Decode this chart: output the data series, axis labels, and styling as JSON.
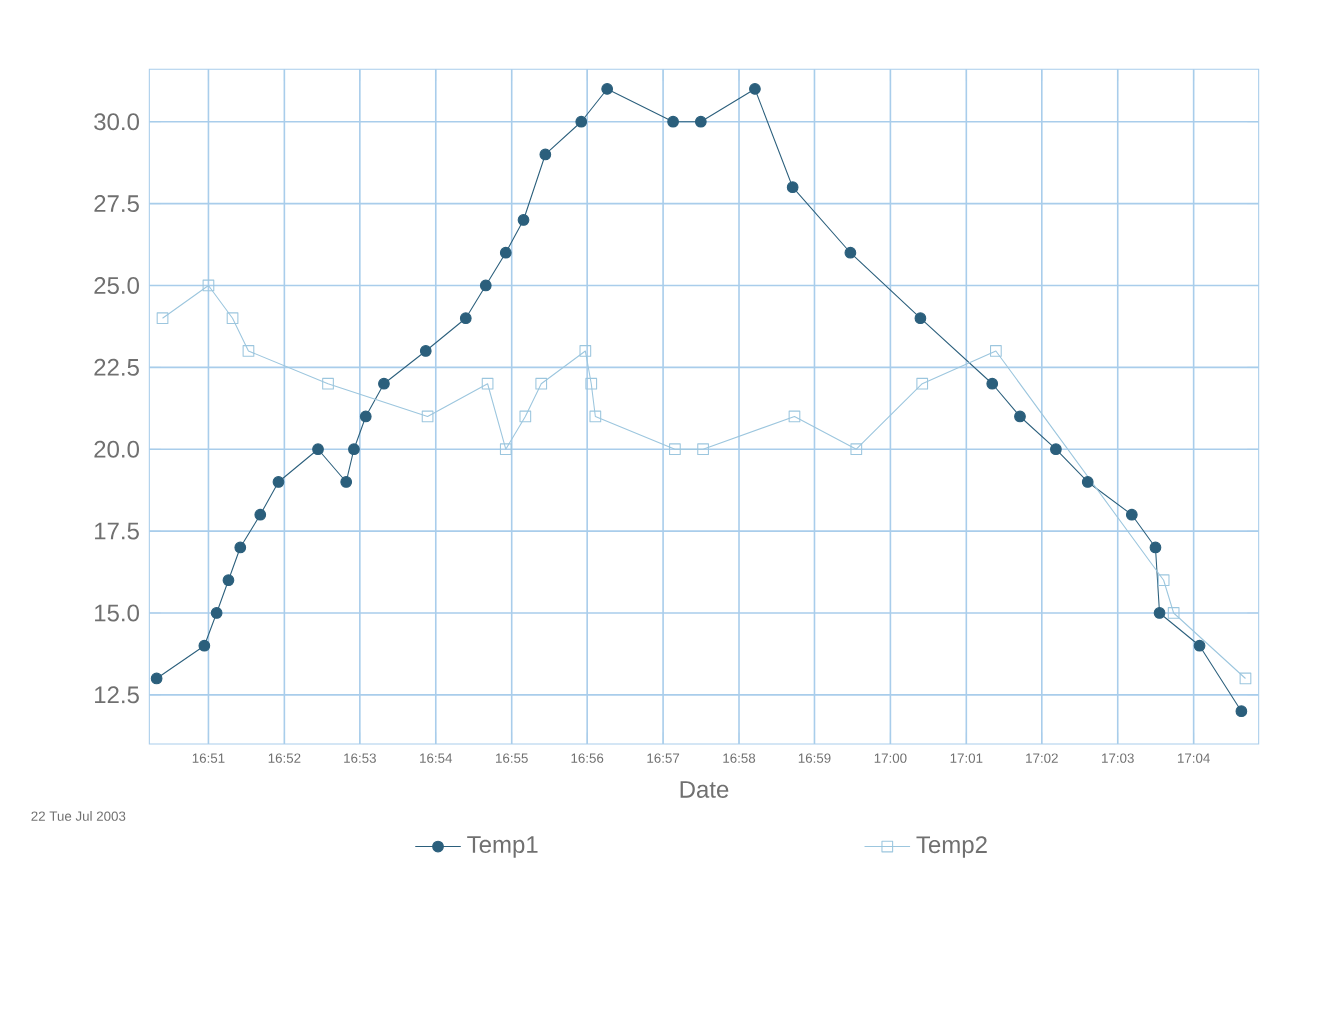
{
  "chart_data": {
    "type": "line",
    "xlabel": "Date",
    "annotations": [
      "22 Tue Jul 2003"
    ],
    "xlim": [
      16.837,
      17.081
    ],
    "ylim": [
      11.0,
      31.6
    ],
    "xticks": [
      {
        "value": 16.85,
        "label": "16:51"
      },
      {
        "value": 16.8667,
        "label": "16:52"
      },
      {
        "value": 16.8833,
        "label": "16:53"
      },
      {
        "value": 16.9,
        "label": "16:54"
      },
      {
        "value": 16.9167,
        "label": "16:55"
      },
      {
        "value": 16.9333,
        "label": "16:56"
      },
      {
        "value": 16.95,
        "label": "16:57"
      },
      {
        "value": 16.9667,
        "label": "16:58"
      },
      {
        "value": 16.9833,
        "label": "16:59"
      },
      {
        "value": 17.0,
        "label": "17:00"
      },
      {
        "value": 17.0167,
        "label": "17:01"
      },
      {
        "value": 17.0333,
        "label": "17:02"
      },
      {
        "value": 17.05,
        "label": "17:03"
      },
      {
        "value": 17.0667,
        "label": "17:04"
      }
    ],
    "yticks": [
      {
        "value": 12.5,
        "label": "12.5"
      },
      {
        "value": 15,
        "label": "15.0"
      },
      {
        "value": 17.5,
        "label": "17.5"
      },
      {
        "value": 20,
        "label": "20.0"
      },
      {
        "value": 22.5,
        "label": "22.5"
      },
      {
        "value": 25,
        "label": "25.0"
      },
      {
        "value": 27.5,
        "label": "27.5"
      },
      {
        "value": 30,
        "label": "30.0"
      }
    ],
    "grid": true,
    "legend": "bottom",
    "line_style": "solid",
    "series": [
      {
        "name": "Temp1",
        "color": "#2b5f7c",
        "marker": "circle",
        "x": [
          16.8386,
          16.8491,
          16.8518,
          16.8544,
          16.857,
          16.8614,
          16.8654,
          16.8741,
          16.8803,
          16.882,
          16.8846,
          16.8886,
          16.8978,
          16.9066,
          16.911,
          16.9154,
          16.9193,
          16.9241,
          16.932,
          16.9377,
          16.9522,
          16.9583,
          16.9702,
          16.9785,
          16.9912,
          17.0066,
          17.0224,
          17.0285,
          17.0364,
          17.0434,
          17.0531,
          17.0583,
          17.0592,
          17.068,
          17.0772
        ],
        "values": [
          13,
          14,
          15,
          16,
          17,
          18,
          19,
          20,
          19,
          20,
          21,
          22,
          23,
          24,
          25,
          26,
          27,
          29,
          30,
          31,
          30,
          30,
          31,
          28,
          26,
          24,
          22,
          21,
          20,
          19,
          18,
          17,
          15,
          14,
          12
        ]
      },
      {
        "name": "Temp2",
        "color": "#9cc6de",
        "marker": "square",
        "x": [
          16.8399,
          16.85,
          16.8553,
          16.8588,
          16.8763,
          16.8982,
          16.9114,
          16.9154,
          16.9197,
          16.9232,
          16.9329,
          16.9342,
          16.9351,
          16.9526,
          16.9588,
          16.9789,
          16.9925,
          17.007,
          17.0232,
          17.0601,
          17.0623,
          17.0781
        ],
        "values": [
          24,
          25,
          24,
          23,
          22,
          21,
          22,
          20,
          21,
          22,
          23,
          22,
          21,
          20,
          20,
          21,
          20,
          22,
          23,
          16,
          15,
          13
        ]
      }
    ]
  }
}
